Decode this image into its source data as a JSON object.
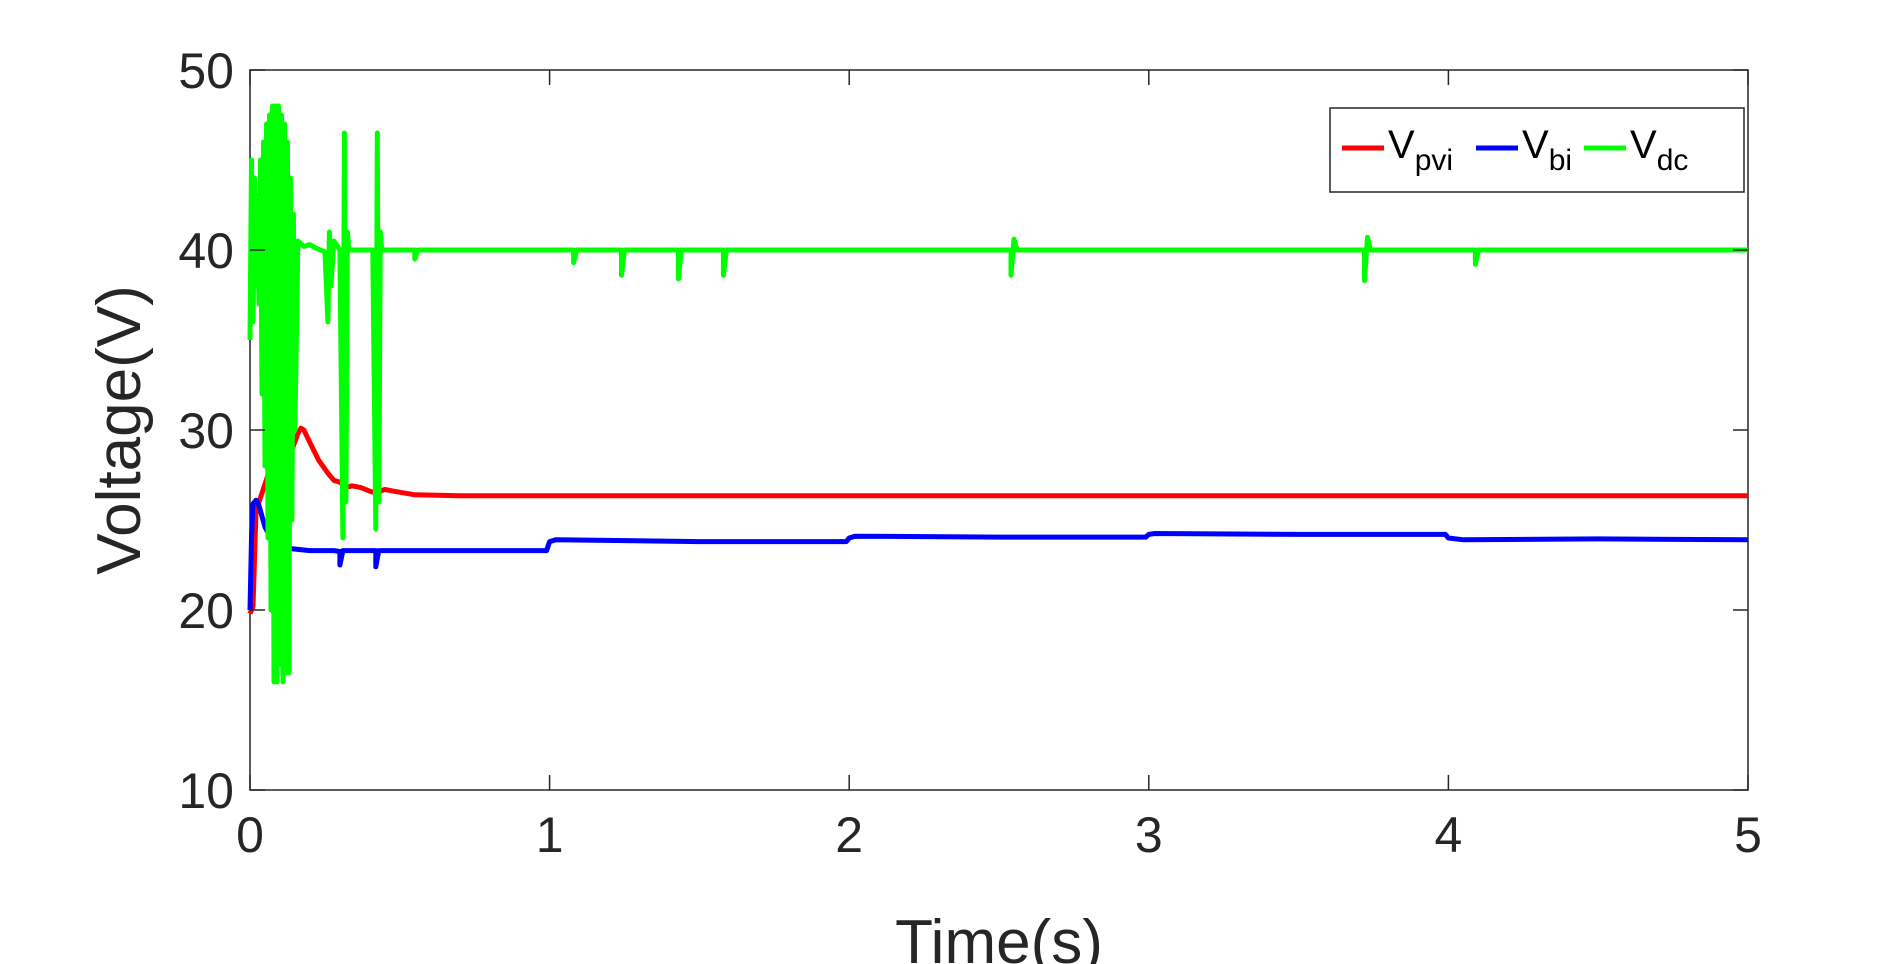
{
  "chart_data": {
    "type": "line",
    "title": "",
    "xlabel": "Time(s)",
    "ylabel": "Voltage(V)",
    "xlim": [
      0,
      5
    ],
    "ylim": [
      10,
      50
    ],
    "x_ticks": [
      "0",
      "1",
      "2",
      "3",
      "4",
      "5"
    ],
    "y_ticks": [
      "10",
      "20",
      "30",
      "40",
      "50"
    ],
    "grid": false,
    "legend_position": "top-right",
    "series": [
      {
        "name": "V_pvi",
        "legend_main": "V",
        "legend_sub": "pvi",
        "color": "#ff0000",
        "points": [
          [
            0,
            19.8
          ],
          [
            0.01,
            20.2
          ],
          [
            0.02,
            25.5
          ],
          [
            0.04,
            26.5
          ],
          [
            0.06,
            27.5
          ],
          [
            0.08,
            28.2
          ],
          [
            0.1,
            28.4
          ],
          [
            0.12,
            28.6
          ],
          [
            0.14,
            28.9
          ],
          [
            0.16,
            29.8
          ],
          [
            0.17,
            30.1
          ],
          [
            0.18,
            30.0
          ],
          [
            0.2,
            29.3
          ],
          [
            0.23,
            28.3
          ],
          [
            0.26,
            27.6
          ],
          [
            0.28,
            27.2
          ],
          [
            0.3,
            27.1
          ],
          [
            0.32,
            26.8
          ],
          [
            0.34,
            26.9
          ],
          [
            0.37,
            26.8
          ],
          [
            0.4,
            26.6
          ],
          [
            0.42,
            26.5
          ],
          [
            0.45,
            26.7
          ],
          [
            0.48,
            26.6
          ],
          [
            0.55,
            26.4
          ],
          [
            0.7,
            26.35
          ],
          [
            1.0,
            26.35
          ],
          [
            1.5,
            26.35
          ],
          [
            2.0,
            26.35
          ],
          [
            2.5,
            26.35
          ],
          [
            3.0,
            26.35
          ],
          [
            3.5,
            26.35
          ],
          [
            4.0,
            26.35
          ],
          [
            4.5,
            26.35
          ],
          [
            5.0,
            26.35
          ]
        ]
      },
      {
        "name": "V_bi",
        "legend_main": "V",
        "legend_sub": "bi",
        "color": "#0000ff",
        "points": [
          [
            0,
            20.0
          ],
          [
            0.005,
            24.0
          ],
          [
            0.01,
            25.9
          ],
          [
            0.02,
            26.1
          ],
          [
            0.03,
            25.8
          ],
          [
            0.05,
            24.6
          ],
          [
            0.07,
            24.0
          ],
          [
            0.1,
            23.6
          ],
          [
            0.14,
            23.4
          ],
          [
            0.2,
            23.3
          ],
          [
            0.28,
            23.3
          ],
          [
            0.3,
            23.25
          ],
          [
            0.3,
            22.5
          ],
          [
            0.31,
            23.3
          ],
          [
            0.42,
            23.3
          ],
          [
            0.42,
            22.4
          ],
          [
            0.43,
            23.3
          ],
          [
            0.6,
            23.3
          ],
          [
            0.99,
            23.3
          ],
          [
            1.0,
            23.8
          ],
          [
            1.02,
            23.9
          ],
          [
            1.5,
            23.8
          ],
          [
            1.99,
            23.8
          ],
          [
            2.0,
            24.0
          ],
          [
            2.02,
            24.1
          ],
          [
            2.5,
            24.05
          ],
          [
            2.99,
            24.05
          ],
          [
            3.0,
            24.2
          ],
          [
            3.02,
            24.25
          ],
          [
            3.5,
            24.2
          ],
          [
            3.99,
            24.2
          ],
          [
            4.0,
            24.0
          ],
          [
            4.05,
            23.9
          ],
          [
            4.5,
            23.95
          ],
          [
            5.0,
            23.9
          ]
        ]
      },
      {
        "name": "V_dc",
        "legend_main": "V",
        "legend_sub": "dc",
        "color": "#00ff00",
        "points": [
          [
            0,
            35.0
          ],
          [
            0.005,
            45.0
          ],
          [
            0.01,
            36.0
          ],
          [
            0.015,
            44.0
          ],
          [
            0.02,
            38.0
          ],
          [
            0.025,
            43.0
          ],
          [
            0.03,
            37.0
          ],
          [
            0.035,
            45.0
          ],
          [
            0.04,
            32.0
          ],
          [
            0.045,
            46.0
          ],
          [
            0.05,
            28.0
          ],
          [
            0.055,
            47.0
          ],
          [
            0.06,
            24.0
          ],
          [
            0.065,
            47.5
          ],
          [
            0.07,
            20.0
          ],
          [
            0.075,
            48.0
          ],
          [
            0.08,
            16.0
          ],
          [
            0.085,
            48.0
          ],
          [
            0.09,
            16.0
          ],
          [
            0.095,
            48.0
          ],
          [
            0.1,
            17.0
          ],
          [
            0.105,
            47.5
          ],
          [
            0.11,
            16.0
          ],
          [
            0.115,
            47.0
          ],
          [
            0.12,
            16.5
          ],
          [
            0.125,
            46.0
          ],
          [
            0.13,
            16.5
          ],
          [
            0.135,
            44.0
          ],
          [
            0.14,
            25.0
          ],
          [
            0.145,
            42.0
          ],
          [
            0.15,
            30.0
          ],
          [
            0.16,
            40.5
          ],
          [
            0.18,
            40.2
          ],
          [
            0.2,
            40.3
          ],
          [
            0.22,
            40.1
          ],
          [
            0.25,
            39.9
          ],
          [
            0.26,
            36.0
          ],
          [
            0.265,
            41.0
          ],
          [
            0.27,
            38.0
          ],
          [
            0.28,
            40.5
          ],
          [
            0.3,
            40.0
          ],
          [
            0.31,
            24.0
          ],
          [
            0.315,
            46.5
          ],
          [
            0.32,
            26.0
          ],
          [
            0.325,
            41.0
          ],
          [
            0.33,
            40.0
          ],
          [
            0.41,
            40.0
          ],
          [
            0.42,
            24.5
          ],
          [
            0.425,
            46.5
          ],
          [
            0.43,
            26.0
          ],
          [
            0.435,
            41.0
          ],
          [
            0.44,
            40.0
          ],
          [
            0.55,
            40.0
          ],
          [
            0.55,
            39.5
          ],
          [
            0.56,
            40.0
          ],
          [
            1.08,
            40.0
          ],
          [
            1.08,
            39.3
          ],
          [
            1.09,
            40.0
          ],
          [
            1.24,
            40.0
          ],
          [
            1.24,
            38.6
          ],
          [
            1.25,
            40.0
          ],
          [
            1.43,
            40.0
          ],
          [
            1.43,
            38.4
          ],
          [
            1.44,
            40.0
          ],
          [
            1.58,
            40.0
          ],
          [
            1.58,
            38.6
          ],
          [
            1.59,
            40.0
          ],
          [
            2.54,
            40.0
          ],
          [
            2.54,
            38.6
          ],
          [
            2.55,
            40.6
          ],
          [
            2.56,
            40.0
          ],
          [
            3.72,
            40.0
          ],
          [
            3.72,
            38.3
          ],
          [
            3.73,
            40.7
          ],
          [
            3.74,
            40.0
          ],
          [
            4.09,
            40.0
          ],
          [
            4.09,
            39.2
          ],
          [
            4.1,
            40.0
          ],
          [
            5.0,
            40.0
          ]
        ]
      }
    ]
  }
}
